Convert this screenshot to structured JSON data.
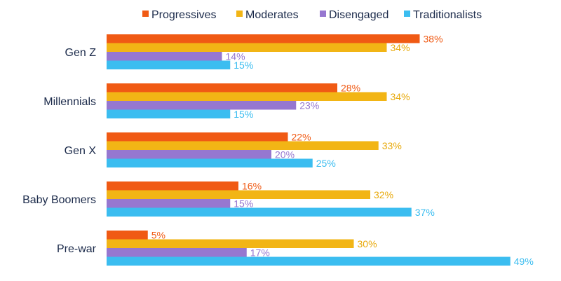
{
  "chart_data": {
    "type": "bar",
    "orientation": "horizontal",
    "categories": [
      "Gen Z",
      "Millennials",
      "Gen X",
      "Baby Boomers",
      "Pre-war"
    ],
    "series": [
      {
        "name": "Progressives",
        "color": "#f05a14",
        "values": [
          38,
          28,
          22,
          16,
          5
        ],
        "labels": [
          "38%",
          "28%",
          "22%",
          "16%",
          "5%"
        ]
      },
      {
        "name": "Moderates",
        "color": "#f2b515",
        "values": [
          34,
          34,
          33,
          32,
          30
        ],
        "labels": [
          "34%",
          "34%",
          "33%",
          "32%",
          "30%"
        ]
      },
      {
        "name": "Disengaged",
        "color": "#9677d0",
        "values": [
          14,
          23,
          20,
          15,
          17
        ],
        "labels": [
          "14%",
          "23%",
          "20%",
          "15%",
          "17%"
        ]
      },
      {
        "name": "Traditionalists",
        "color": "#3bbdf0",
        "values": [
          15,
          15,
          25,
          37,
          49
        ],
        "labels": [
          "15%",
          "15%",
          "25%",
          "37%",
          "49%"
        ]
      }
    ],
    "xlim": [
      0,
      50
    ],
    "legend_position": "top",
    "grid": false,
    "value_unit": "%"
  }
}
